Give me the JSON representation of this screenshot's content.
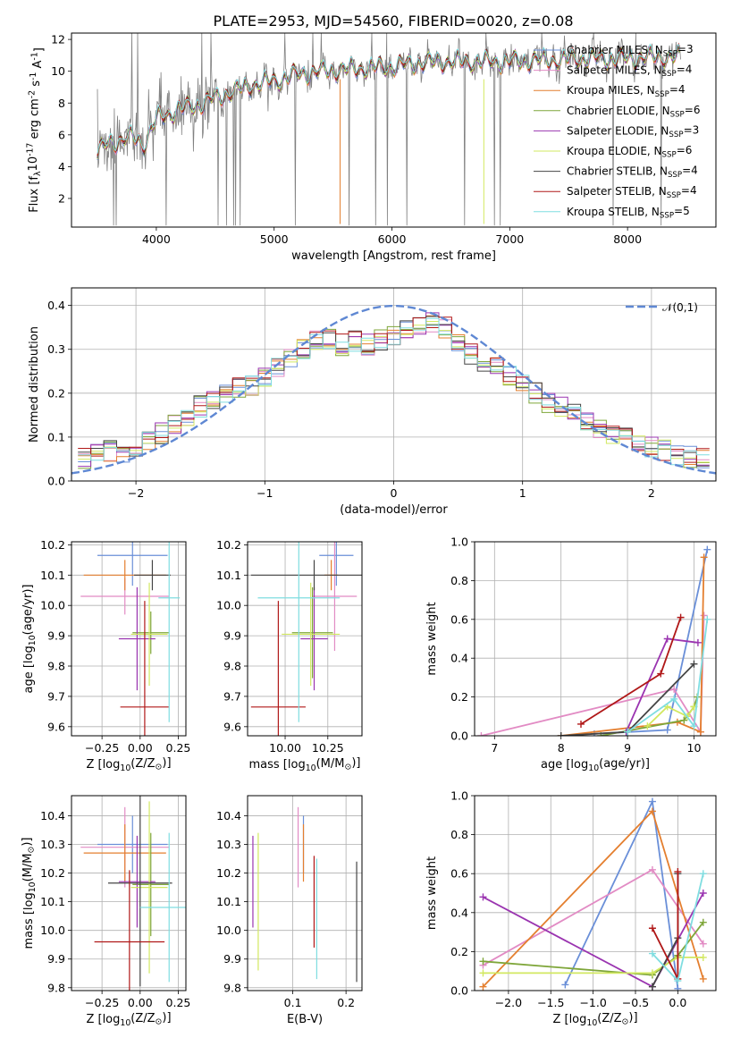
{
  "figure": {
    "title": "PLATE=2953, MJD=54560, FIBERID=0020, z=0.08"
  },
  "chart_data": [
    {
      "id": "spectrum",
      "type": "line",
      "xlabel": "wavelength [Angstrom, rest frame]",
      "ylabel": "Flux [f$_\\lambda$10$^{-17}$ erg cm$^{-2}$ s$^{-1}$ A$^{-1}$]",
      "xlim": [
        3280,
        8750
      ],
      "ylim": [
        0.2,
        12.4
      ],
      "xticks": [
        4000,
        5000,
        6000,
        7000,
        8000
      ],
      "yticks": [
        2,
        4,
        6,
        8,
        10,
        12
      ],
      "grid": false,
      "legend_position": "top-right",
      "continuum": {
        "x": [
          3500,
          3600,
          3700,
          3800,
          3900,
          4000,
          4200,
          4400,
          4600,
          4800,
          5000,
          5200,
          5400,
          5600,
          5800,
          6000,
          6200,
          6400,
          6600,
          6800,
          7000,
          7200,
          7400,
          7600,
          7800,
          8000,
          8200,
          8400
        ],
        "y": [
          4.8,
          5.6,
          5.6,
          5.9,
          5.4,
          7.0,
          7.6,
          8.0,
          8.6,
          9.1,
          9.4,
          9.8,
          10.0,
          10.1,
          10.2,
          10.3,
          10.5,
          10.6,
          10.6,
          10.6,
          10.6,
          10.7,
          10.7,
          10.8,
          10.8,
          10.8,
          10.9,
          10.9
        ]
      },
      "series": [
        {
          "name": "Chabrier MILES, N$_{SSP}$=3",
          "color": "#6a8fd8"
        },
        {
          "name": "Salpeter MILES, N$_{SSP}$=4",
          "color": "#e28bc4"
        },
        {
          "name": "Kroupa MILES, N$_{SSP}$=4",
          "color": "#e47f2f"
        },
        {
          "name": "Chabrier ELODIE, N$_{SSP}$=6",
          "color": "#7fa63a"
        },
        {
          "name": "Salpeter ELODIE, N$_{SSP}$=3",
          "color": "#9a34b0"
        },
        {
          "name": "Kroupa ELODIE, N$_{SSP}$=6",
          "color": "#d2e860"
        },
        {
          "name": "Chabrier STELIB, N$_{SSP}$=4",
          "color": "#454545"
        },
        {
          "name": "Salpeter STELIB, N$_{SSP}$=4",
          "color": "#b01818"
        },
        {
          "name": "Kroupa STELIB, N$_{SSP}$=5",
          "color": "#7fdde0"
        }
      ],
      "data_color": "#808080"
    },
    {
      "id": "residuals",
      "type": "bar",
      "xlabel": "(data-model)/error",
      "ylabel": "Normed distribution",
      "xlim": [
        -2.5,
        2.5
      ],
      "ylim": [
        0.0,
        0.44
      ],
      "xticks": [
        -2,
        -1,
        0,
        1,
        2
      ],
      "yticks": [
        0.0,
        0.1,
        0.2,
        0.3,
        0.4
      ],
      "grid": true,
      "legend_position": "top-right",
      "bins": [
        -2.4,
        -2.3,
        -2.2,
        -2.1,
        -2.0,
        -1.9,
        -1.8,
        -1.7,
        -1.6,
        -1.5,
        -1.4,
        -1.3,
        -1.2,
        -1.1,
        -1.0,
        -0.9,
        -0.8,
        -0.7,
        -0.6,
        -0.5,
        -0.4,
        -0.3,
        -0.2,
        -0.1,
        0.0,
        0.1,
        0.2,
        0.3,
        0.4,
        0.5,
        0.6,
        0.7,
        0.8,
        0.9,
        1.0,
        1.1,
        1.2,
        1.3,
        1.4,
        1.5,
        1.6,
        1.7,
        1.8,
        1.9,
        2.0,
        2.1,
        2.2,
        2.3,
        2.4
      ],
      "heights": [
        0.05,
        0.06,
        0.07,
        0.065,
        0.07,
        0.09,
        0.11,
        0.125,
        0.15,
        0.17,
        0.19,
        0.2,
        0.21,
        0.22,
        0.24,
        0.26,
        0.28,
        0.3,
        0.32,
        0.325,
        0.31,
        0.32,
        0.31,
        0.32,
        0.33,
        0.34,
        0.35,
        0.36,
        0.35,
        0.31,
        0.29,
        0.27,
        0.26,
        0.24,
        0.22,
        0.2,
        0.18,
        0.17,
        0.15,
        0.13,
        0.12,
        0.11,
        0.1,
        0.09,
        0.08,
        0.07,
        0.06,
        0.055,
        0.05
      ],
      "gaussian": {
        "name": "$\\mathcal{N}(0,1)$",
        "color": "#5f88d3"
      }
    },
    {
      "id": "age-vs-Z",
      "type": "scatter",
      "xlabel": "Z [log$_{10}$($Z/Z_\\odot$)]",
      "ylabel": "age  [log$_{10}$($age/yr$)]",
      "xlim": [
        -0.45,
        0.3
      ],
      "ylim": [
        9.57,
        10.21
      ],
      "xticks": [
        -0.25,
        0.0,
        0.25
      ],
      "yticks": [
        9.6,
        9.7,
        9.8,
        9.9,
        10.0,
        10.1,
        10.2
      ],
      "grid": true,
      "points": [
        {
          "series": "Chabrier MILES",
          "x": -0.05,
          "y": 10.165,
          "xerr": 0.23,
          "yerr": 0.1
        },
        {
          "series": "Salpeter MILES",
          "x": -0.1,
          "y": 10.03,
          "xerr": 0.29,
          "yerr": 0.06
        },
        {
          "series": "Kroupa MILES",
          "x": -0.1,
          "y": 10.1,
          "xerr": 0.27,
          "yerr": 0.05
        },
        {
          "series": "Chabrier ELODIE",
          "x": 0.07,
          "y": 9.91,
          "xerr": 0.12,
          "yerr": 0.07
        },
        {
          "series": "Salpeter ELODIE",
          "x": -0.02,
          "y": 9.89,
          "xerr": 0.12,
          "yerr": 0.17
        },
        {
          "series": "Kroupa ELODIE",
          "x": 0.06,
          "y": 9.905,
          "xerr": 0.12,
          "yerr": 0.17
        },
        {
          "series": "Chabrier STELIB",
          "x": 0.08,
          "y": 10.1,
          "xerr": 0.12,
          "yerr": 0.05
        },
        {
          "series": "Salpeter STELIB",
          "x": 0.03,
          "y": 9.665,
          "xerr": 0.16,
          "yerr": 0.35
        },
        {
          "series": "Kroupa STELIB",
          "x": 0.19,
          "y": 10.025,
          "xerr": 0.07,
          "yerr": 0.41
        }
      ]
    },
    {
      "id": "age-vs-mass",
      "type": "scatter",
      "xlabel": "mass [log$_{10}$($M/M_\\odot$)]",
      "ylabel": "",
      "xlim": [
        9.78,
        10.45
      ],
      "ylim": [
        9.57,
        10.21
      ],
      "xticks": [
        10.0,
        10.25
      ],
      "yticks": [
        9.6,
        9.7,
        9.8,
        9.9,
        10.0,
        10.1,
        10.2
      ],
      "grid": true,
      "points": [
        {
          "series": "Chabrier MILES",
          "x": 10.3,
          "y": 10.165,
          "xerr": 0.1,
          "yerr": 0.1
        },
        {
          "series": "Salpeter MILES",
          "x": 10.29,
          "y": 10.03,
          "xerr": 0.13,
          "yerr": 0.18
        },
        {
          "series": "Kroupa MILES",
          "x": 10.27,
          "y": 10.1,
          "xerr": 0.04,
          "yerr": 0.05
        },
        {
          "series": "Chabrier ELODIE",
          "x": 10.16,
          "y": 9.91,
          "xerr": 0.12,
          "yerr": 0.15
        },
        {
          "series": "Salpeter ELODIE",
          "x": 10.17,
          "y": 9.89,
          "xerr": 0.08,
          "yerr": 0.17
        },
        {
          "series": "Kroupa ELODIE",
          "x": 10.15,
          "y": 9.905,
          "xerr": 0.17,
          "yerr": 0.17
        },
        {
          "series": "Chabrier STELIB",
          "x": 10.17,
          "y": 10.1,
          "xerr": 0.37,
          "yerr": 0.05
        },
        {
          "series": "Salpeter STELIB",
          "x": 9.96,
          "y": 9.665,
          "xerr": 0.16,
          "yerr": 0.35
        },
        {
          "series": "Kroupa STELIB",
          "x": 10.08,
          "y": 10.025,
          "xerr": 0.24,
          "yerr": 0.41
        }
      ]
    },
    {
      "id": "weight-vs-age",
      "type": "line",
      "xlabel": "age  [log$_{10}$($age/yr$)]",
      "ylabel": "mass weight",
      "xlim": [
        6.7,
        10.33
      ],
      "ylim": [
        0.0,
        1.0
      ],
      "xticks": [
        7,
        8,
        9,
        10
      ],
      "yticks": [
        0.0,
        0.2,
        0.4,
        0.6,
        0.8,
        1.0
      ],
      "grid": true,
      "series": [
        {
          "name": "Chabrier MILES",
          "x": [
            8.5,
            9.6,
            10.2
          ],
          "y": [
            0.01,
            0.03,
            0.96
          ]
        },
        {
          "name": "Salpeter MILES",
          "x": [
            6.8,
            9.7,
            10.1,
            10.15
          ],
          "y": [
            0.0,
            0.24,
            0.02,
            0.62
          ]
        },
        {
          "name": "Kroupa MILES",
          "x": [
            8.0,
            9.75,
            10.1,
            10.15
          ],
          "y": [
            0.0,
            0.07,
            0.02,
            0.92
          ]
        },
        {
          "name": "Chabrier ELODIE",
          "x": [
            8.6,
            9.85,
            10.0,
            10.05
          ],
          "y": [
            0.0,
            0.08,
            0.15,
            0.2
          ]
        },
        {
          "name": "Salpeter ELODIE",
          "x": [
            8.98,
            9.6,
            10.06
          ],
          "y": [
            0.02,
            0.5,
            0.48
          ]
        },
        {
          "name": "Kroupa ELODIE",
          "x": [
            9.3,
            9.6,
            9.9,
            10.0
          ],
          "y": [
            0.05,
            0.15,
            0.1,
            0.15
          ]
        },
        {
          "name": "Chabrier STELIB",
          "x": [
            8.0,
            9.0,
            10.0
          ],
          "y": [
            0.0,
            0.02,
            0.37
          ]
        },
        {
          "name": "Salpeter STELIB",
          "x": [
            8.3,
            9.5,
            9.8
          ],
          "y": [
            0.06,
            0.32,
            0.61
          ]
        },
        {
          "name": "Kroupa STELIB",
          "x": [
            9.0,
            9.7,
            10.0,
            10.2
          ],
          "y": [
            0.02,
            0.19,
            0.05,
            0.6
          ]
        }
      ]
    },
    {
      "id": "mass-vs-Z",
      "type": "scatter",
      "xlabel": "Z [log$_{10}$($Z/Z_\\odot$)]",
      "ylabel": "mass [log$_{10}$($M/M_\\odot$)]",
      "xlim": [
        -0.45,
        0.3
      ],
      "ylim": [
        9.79,
        10.47
      ],
      "xticks": [
        -0.25,
        0.0,
        0.25
      ],
      "yticks": [
        9.8,
        9.9,
        10.0,
        10.1,
        10.2,
        10.3,
        10.4
      ],
      "grid": true,
      "points": [
        {
          "series": "Chabrier MILES",
          "x": -0.05,
          "y": 10.3,
          "xerr": 0.23,
          "yerr": 0.1
        },
        {
          "series": "Salpeter MILES",
          "x": -0.1,
          "y": 10.29,
          "xerr": 0.29,
          "yerr": 0.14
        },
        {
          "series": "Kroupa MILES",
          "x": -0.1,
          "y": 10.27,
          "xerr": 0.27,
          "yerr": 0.1
        },
        {
          "series": "Chabrier ELODIE",
          "x": 0.07,
          "y": 10.16,
          "xerr": 0.12,
          "yerr": 0.18
        },
        {
          "series": "Salpeter ELODIE",
          "x": -0.02,
          "y": 10.17,
          "xerr": 0.12,
          "yerr": 0.16
        },
        {
          "series": "Kroupa ELODIE",
          "x": 0.06,
          "y": 10.15,
          "xerr": 0.12,
          "yerr": 0.3
        },
        {
          "series": "Chabrier STELIB",
          "x": 0.0,
          "y": 10.165,
          "xerr": 0.21,
          "yerr": 0.36
        },
        {
          "series": "Salpeter STELIB",
          "x": -0.07,
          "y": 9.96,
          "xerr": 0.23,
          "yerr": 0.25
        },
        {
          "series": "Kroupa STELIB",
          "x": 0.19,
          "y": 10.08,
          "xerr": 0.19,
          "yerr": 0.26
        }
      ]
    },
    {
      "id": "mass-vs-EBV",
      "type": "scatter",
      "xlabel": "E(B-V)",
      "ylabel": "",
      "xlim": [
        0.015,
        0.23
      ],
      "ylim": [
        9.79,
        10.47
      ],
      "xticks": [
        0.1,
        0.2
      ],
      "yticks": [
        9.8,
        9.9,
        10.0,
        10.1,
        10.2,
        10.3,
        10.4
      ],
      "grid": true,
      "points": [
        {
          "series": "Chabrier MILES",
          "x": 0.12,
          "y": 10.3,
          "xerr": 0.0,
          "yerr": 0.1
        },
        {
          "series": "Salpeter MILES",
          "x": 0.11,
          "y": 10.29,
          "xerr": 0.0,
          "yerr": 0.14
        },
        {
          "series": "Kroupa MILES",
          "x": 0.12,
          "y": 10.27,
          "xerr": 0.0,
          "yerr": 0.1
        },
        {
          "series": "Salpeter ELODIE",
          "x": 0.025,
          "y": 10.17,
          "xerr": 0.0,
          "yerr": 0.16
        },
        {
          "series": "Kroupa ELODIE",
          "x": 0.035,
          "y": 10.1,
          "xerr": 0.0,
          "yerr": 0.24
        },
        {
          "series": "Chabrier STELIB",
          "x": 0.22,
          "y": 10.03,
          "xerr": 0.0,
          "yerr": 0.21
        },
        {
          "series": "Salpeter STELIB",
          "x": 0.14,
          "y": 10.1,
          "xerr": 0.0,
          "yerr": 0.16
        },
        {
          "series": "Kroupa STELIB",
          "x": 0.145,
          "y": 10.04,
          "xerr": 0.0,
          "yerr": 0.21
        }
      ]
    },
    {
      "id": "weight-vs-Z",
      "type": "line",
      "xlabel": "Z [log$_{10}$($Z/Z_\\odot$)]",
      "ylabel": "mass weight",
      "xlim": [
        -2.4,
        0.45
      ],
      "ylim": [
        0.0,
        1.0
      ],
      "xticks": [
        -2.0,
        -1.5,
        -1.0,
        -0.5,
        0.0
      ],
      "yticks": [
        0.0,
        0.2,
        0.4,
        0.6,
        0.8,
        1.0
      ],
      "grid": true,
      "series": [
        {
          "name": "Chabrier MILES",
          "x": [
            -1.33,
            -0.3,
            0.0
          ],
          "y": [
            0.03,
            0.97,
            0.01
          ]
        },
        {
          "name": "Salpeter MILES",
          "x": [
            -2.3,
            -0.3,
            0.3
          ],
          "y": [
            0.13,
            0.62,
            0.24
          ]
        },
        {
          "name": "Kroupa MILES",
          "x": [
            -2.3,
            -0.3,
            0.3
          ],
          "y": [
            0.02,
            0.92,
            0.06
          ]
        },
        {
          "name": "Chabrier ELODIE",
          "x": [
            -2.3,
            -0.3,
            0.0,
            0.3
          ],
          "y": [
            0.15,
            0.08,
            0.18,
            0.35
          ]
        },
        {
          "name": "Salpeter ELODIE",
          "x": [
            -2.3,
            -0.3,
            0.3
          ],
          "y": [
            0.48,
            0.02,
            0.5
          ]
        },
        {
          "name": "Kroupa ELODIE",
          "x": [
            -2.3,
            -0.3,
            0.0,
            0.3
          ],
          "y": [
            0.09,
            0.09,
            0.17,
            0.17
          ]
        },
        {
          "name": "Chabrier STELIB",
          "x": [
            -0.3,
            0.0,
            0.0
          ],
          "y": [
            0.02,
            0.27,
            0.6
          ]
        },
        {
          "name": "Salpeter STELIB",
          "x": [
            -0.3,
            0.0,
            0.0
          ],
          "y": [
            0.32,
            0.06,
            0.61
          ]
        },
        {
          "name": "Kroupa STELIB",
          "x": [
            -0.3,
            0.0,
            0.3
          ],
          "y": [
            0.19,
            0.05,
            0.6
          ]
        }
      ]
    }
  ]
}
